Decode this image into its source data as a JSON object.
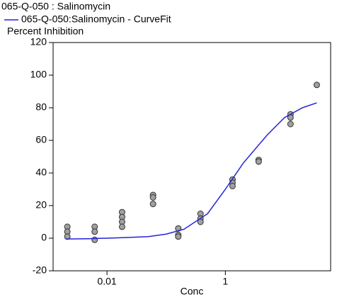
{
  "chart_data": {
    "type": "scatter",
    "title": "065-Q-050  : Salinomycin",
    "ylabel": "Percent Inhibition",
    "xlabel": "Conc",
    "xscale": "log",
    "xlim": [
      0.00123,
      60
    ],
    "ylim": [
      -20,
      120
    ],
    "xticks": [
      0.01,
      1
    ],
    "yticks": [
      -20,
      0,
      20,
      40,
      60,
      80,
      100,
      120
    ],
    "series": [
      {
        "color": "#a0a0a0",
        "x": [
          0.00214,
          0.00214,
          0.00214,
          0.0062,
          0.0062,
          0.0062,
          0.018,
          0.018,
          0.018,
          0.018,
          0.06,
          0.06,
          0.06,
          0.16,
          0.16,
          0.16,
          0.38,
          0.38,
          0.38,
          1.32,
          1.32,
          1.32,
          3.65,
          3.65,
          12.6,
          12.6,
          12.6,
          35
        ],
        "values": [
          7,
          4,
          1,
          7,
          4,
          -1,
          16,
          13,
          10,
          7,
          26.5,
          25,
          21,
          6,
          2,
          1,
          15,
          12,
          10,
          36,
          34,
          32,
          48,
          47,
          76,
          74,
          70,
          94
        ]
      },
      {
        "name": "065-Q-050:Salinomycin - CurveFit",
        "color": "#2323d8",
        "kind": "line",
        "x": [
          0.002,
          0.005,
          0.01,
          0.02,
          0.05,
          0.1,
          0.2,
          0.5,
          1,
          2,
          5,
          10,
          20,
          35
        ],
        "values": [
          -0.5,
          -0.3,
          0,
          0.4,
          1,
          2.5,
          5.5,
          15,
          30,
          46,
          63,
          74,
          80,
          83
        ]
      }
    ]
  }
}
